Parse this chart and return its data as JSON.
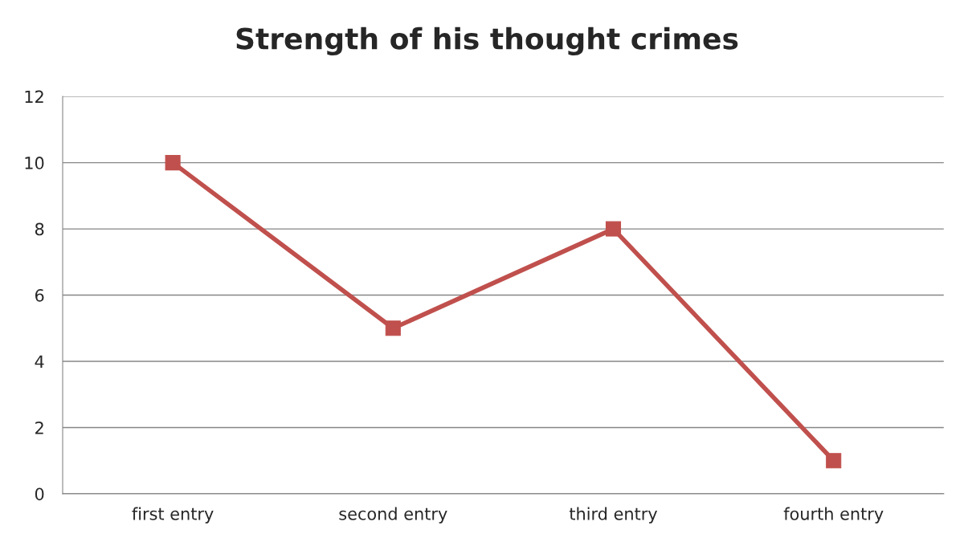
{
  "chart_data": {
    "type": "line",
    "title": "Strength of his thought crimes",
    "categories": [
      "first entry",
      "second entry",
      "third entry",
      "fourth entry"
    ],
    "series": [
      {
        "color": "#c0504d",
        "values": [
          10,
          5,
          8,
          1
        ]
      }
    ],
    "ylim": [
      0,
      12
    ],
    "yticks": [
      0,
      2,
      4,
      6,
      8,
      10,
      12
    ],
    "grid": "y",
    "marker": "square",
    "line_style": "solid"
  }
}
